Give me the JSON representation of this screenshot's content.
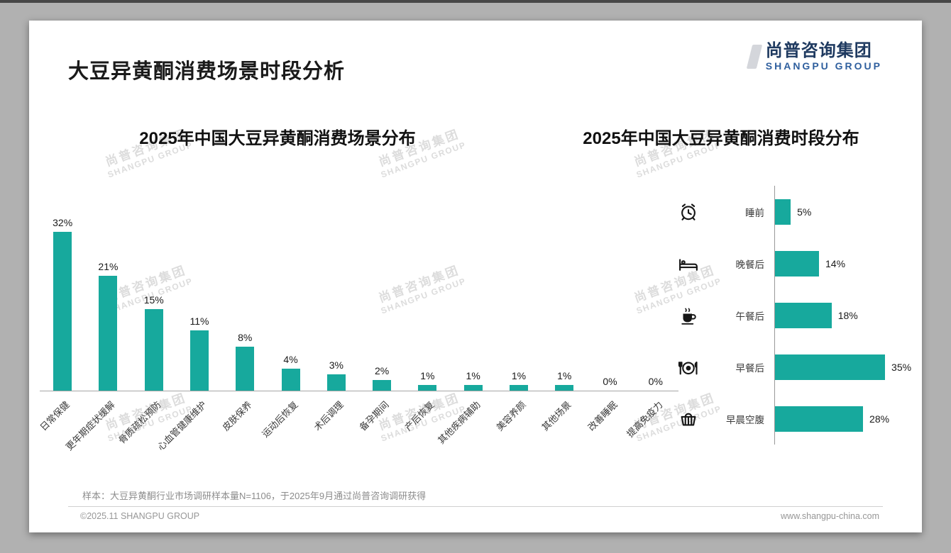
{
  "page": {
    "title": "大豆异黄酮消费场景时段分析",
    "logo": {
      "cn": "尚普咨询集团",
      "en": "SHANGPU GROUP"
    },
    "watermark": {
      "cn": "尚普咨询集团",
      "en": "SHANGPU GROUP"
    },
    "footer": {
      "note": "样本：大豆异黄酮行业市场调研样本量N=1106，于2025年9月通过尚普咨询调研获得",
      "copyright": "©2025.11 SHANGPU GROUP",
      "website": "www.shangpu-china.com"
    },
    "colors": {
      "accent": "#17A99D",
      "logo_navy": "#1F3A60",
      "logo_blue": "#2F5F9E",
      "title_text": "#1A1A1A",
      "watermark_gray": "#C8C8C8"
    }
  },
  "chart_data": [
    {
      "type": "bar",
      "title": "2025年中国大豆异黄酮消费场景分布",
      "categories": [
        "日常保健",
        "更年期症状缓解",
        "骨质疏松预防",
        "心血管健康维护",
        "皮肤保养",
        "运动后恢复",
        "术后调理",
        "备孕期间",
        "产后恢复",
        "其他疾病辅助",
        "美容养颜",
        "其他场景",
        "改善睡眠",
        "提高免疫力"
      ],
      "values": [
        32,
        21,
        15,
        11,
        8,
        4,
        3,
        2,
        1,
        1,
        1,
        1,
        0,
        0
      ],
      "unit": "%",
      "ylim": [
        0,
        35
      ],
      "grid": false,
      "value_labels": true
    },
    {
      "type": "bar-horizontal",
      "title": "2025年中国大豆异黄酮消费时段分布",
      "categories": [
        "睡前",
        "晚餐后",
        "午餐后",
        "早餐后",
        "早晨空腹"
      ],
      "values": [
        5,
        14,
        18,
        35,
        28
      ],
      "icons": [
        "alarm-clock-icon",
        "bed-icon",
        "coffee-icon",
        "meal-icon",
        "basket-icon"
      ],
      "unit": "%",
      "xlim": [
        0,
        40
      ],
      "grid": false,
      "value_labels": true
    }
  ]
}
